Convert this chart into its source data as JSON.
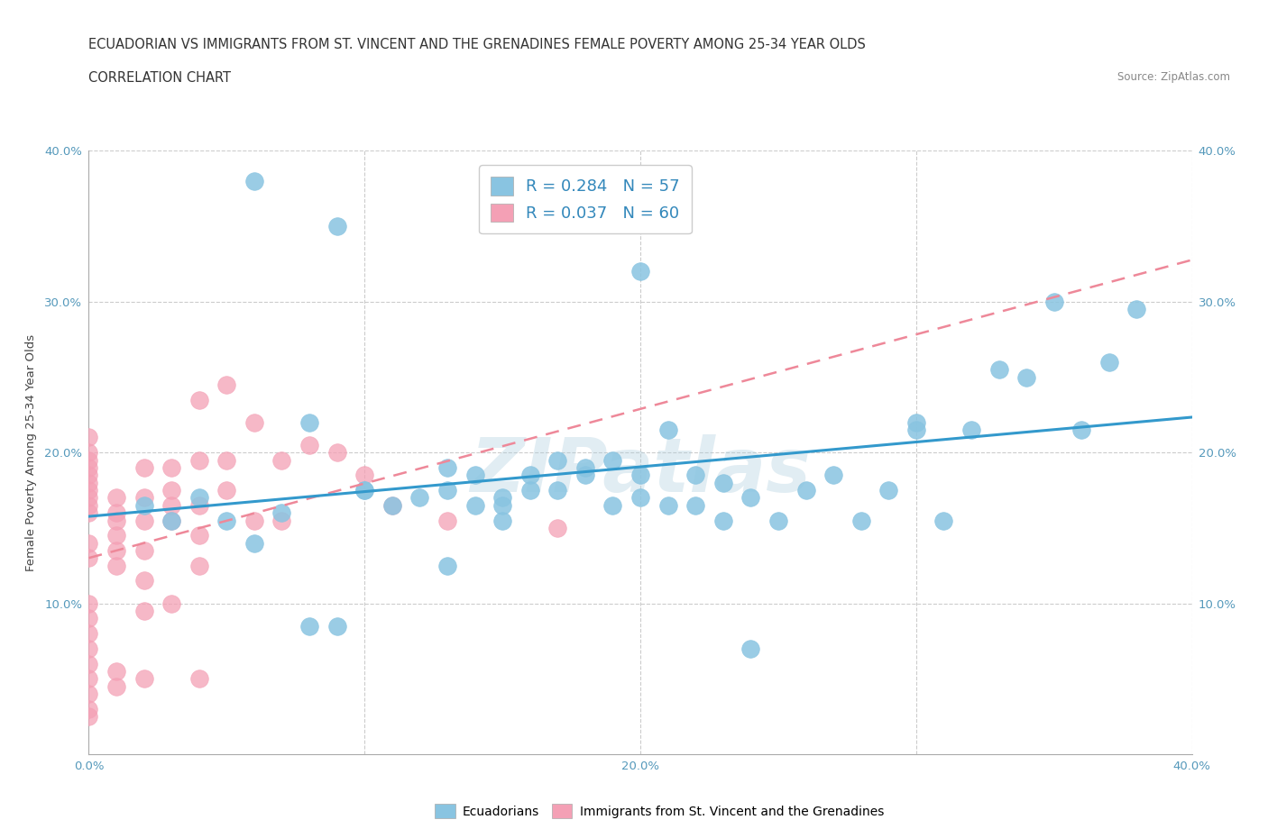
{
  "title_line1": "ECUADORIAN VS IMMIGRANTS FROM ST. VINCENT AND THE GRENADINES FEMALE POVERTY AMONG 25-34 YEAR OLDS",
  "title_line2": "CORRELATION CHART",
  "source_text": "Source: ZipAtlas.com",
  "ylabel": "Female Poverty Among 25-34 Year Olds",
  "xlim": [
    0.0,
    0.4
  ],
  "ylim": [
    0.0,
    0.4
  ],
  "xticks": [
    0.0,
    0.1,
    0.2,
    0.3,
    0.4
  ],
  "yticks": [
    0.0,
    0.1,
    0.2,
    0.3,
    0.4
  ],
  "xticklabels": [
    "0.0%",
    "",
    "20.0%",
    "",
    "40.0%"
  ],
  "yticklabels": [
    "",
    "10.0%",
    "20.0%",
    "30.0%",
    "40.0%"
  ],
  "right_yticklabels": [
    "",
    "10.0%",
    "20.0%",
    "30.0%",
    "40.0%"
  ],
  "grid_color": "#cccccc",
  "background_color": "#ffffff",
  "blue_color": "#89c4e1",
  "pink_color": "#f4a0b5",
  "blue_line_color": "#3399cc",
  "pink_line_color": "#ee8899",
  "pink_line_style": "--",
  "legend_R_blue": "0.284",
  "legend_N_blue": "57",
  "legend_R_pink": "0.037",
  "legend_N_pink": "60",
  "legend_label_blue": "Ecuadorians",
  "legend_label_pink": "Immigrants from St. Vincent and the Grenadines",
  "watermark": "ZIPatlas",
  "blue_x": [
    0.02,
    0.03,
    0.04,
    0.05,
    0.06,
    0.07,
    0.08,
    0.09,
    0.1,
    0.1,
    0.11,
    0.12,
    0.13,
    0.13,
    0.14,
    0.14,
    0.15,
    0.15,
    0.16,
    0.16,
    0.17,
    0.17,
    0.18,
    0.18,
    0.19,
    0.19,
    0.2,
    0.2,
    0.21,
    0.21,
    0.22,
    0.22,
    0.23,
    0.23,
    0.24,
    0.25,
    0.26,
    0.27,
    0.28,
    0.29,
    0.3,
    0.3,
    0.31,
    0.32,
    0.33,
    0.34,
    0.35,
    0.36,
    0.37,
    0.38,
    0.24,
    0.2,
    0.15,
    0.13,
    0.09,
    0.08,
    0.06
  ],
  "blue_y": [
    0.165,
    0.155,
    0.17,
    0.155,
    0.14,
    0.16,
    0.085,
    0.085,
    0.175,
    0.175,
    0.165,
    0.17,
    0.175,
    0.19,
    0.165,
    0.185,
    0.17,
    0.165,
    0.185,
    0.175,
    0.195,
    0.175,
    0.185,
    0.19,
    0.195,
    0.165,
    0.185,
    0.17,
    0.215,
    0.165,
    0.185,
    0.165,
    0.18,
    0.155,
    0.17,
    0.155,
    0.175,
    0.185,
    0.155,
    0.175,
    0.22,
    0.215,
    0.155,
    0.215,
    0.255,
    0.25,
    0.3,
    0.215,
    0.26,
    0.295,
    0.07,
    0.32,
    0.155,
    0.125,
    0.35,
    0.22,
    0.38
  ],
  "pink_x": [
    0.0,
    0.0,
    0.0,
    0.0,
    0.0,
    0.0,
    0.0,
    0.0,
    0.0,
    0.0,
    0.0,
    0.0,
    0.0,
    0.0,
    0.0,
    0.0,
    0.0,
    0.0,
    0.0,
    0.0,
    0.0,
    0.01,
    0.01,
    0.01,
    0.01,
    0.01,
    0.01,
    0.01,
    0.01,
    0.02,
    0.02,
    0.02,
    0.02,
    0.02,
    0.02,
    0.02,
    0.03,
    0.03,
    0.03,
    0.03,
    0.03,
    0.04,
    0.04,
    0.04,
    0.04,
    0.04,
    0.04,
    0.05,
    0.05,
    0.05,
    0.06,
    0.06,
    0.07,
    0.07,
    0.08,
    0.09,
    0.1,
    0.11,
    0.13,
    0.17
  ],
  "pink_y": [
    0.16,
    0.165,
    0.17,
    0.175,
    0.18,
    0.185,
    0.19,
    0.195,
    0.2,
    0.21,
    0.14,
    0.13,
    0.1,
    0.08,
    0.05,
    0.04,
    0.03,
    0.06,
    0.07,
    0.09,
    0.025,
    0.17,
    0.16,
    0.155,
    0.145,
    0.135,
    0.125,
    0.055,
    0.045,
    0.19,
    0.17,
    0.155,
    0.135,
    0.115,
    0.095,
    0.05,
    0.19,
    0.175,
    0.165,
    0.155,
    0.1,
    0.235,
    0.195,
    0.165,
    0.145,
    0.125,
    0.05,
    0.245,
    0.195,
    0.175,
    0.22,
    0.155,
    0.195,
    0.155,
    0.205,
    0.2,
    0.185,
    0.165,
    0.155,
    0.15
  ],
  "title_fontsize": 10.5,
  "axis_label_fontsize": 9.5,
  "tick_fontsize": 9.5,
  "legend_fontsize": 13
}
